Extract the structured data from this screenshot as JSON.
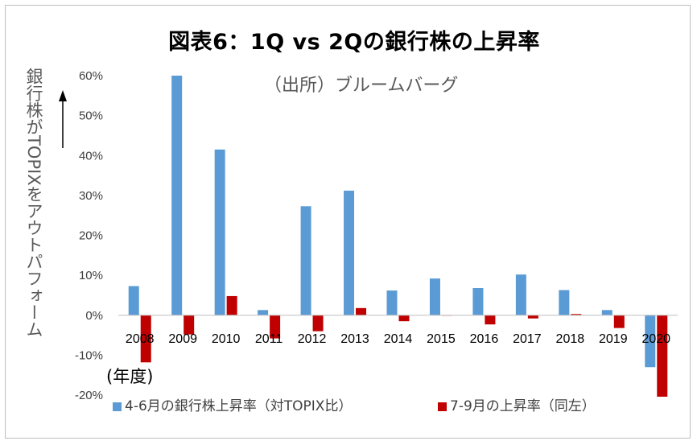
{
  "chart_data": {
    "type": "bar",
    "title": "図表6：1Q vs 2Qの銀行株の上昇率",
    "subtitle": "（出所）ブルームバーグ",
    "ylabel": "銀行株がTOPIXをアウトパフォーム",
    "year_note": "(年度)",
    "categories": [
      "2008",
      "2009",
      "2010",
      "2011",
      "2012",
      "2013",
      "2014",
      "2015",
      "2016",
      "2017",
      "2018",
      "2019",
      "2020"
    ],
    "series": [
      {
        "name": "4-6月の銀行株上昇率（対TOPIX比）",
        "color": "#5b9bd5",
        "values": [
          7.3,
          60.0,
          41.5,
          1.3,
          27.3,
          31.2,
          6.2,
          9.2,
          6.8,
          10.2,
          6.3,
          1.3,
          -13.0
        ]
      },
      {
        "name": "7-9月の上昇率（同左）",
        "color": "#c00000",
        "values": [
          -11.8,
          -4.8,
          4.8,
          -5.8,
          -4.0,
          1.8,
          -1.5,
          0.0,
          -2.3,
          -0.8,
          0.3,
          -3.2,
          -20.4
        ]
      }
    ],
    "yticks": [
      "60%",
      "50%",
      "40%",
      "30%",
      "20%",
      "10%",
      "0%",
      "-10%",
      "-20%"
    ],
    "ylim": [
      -20,
      60
    ],
    "grid": false,
    "legend_position": "bottom"
  }
}
